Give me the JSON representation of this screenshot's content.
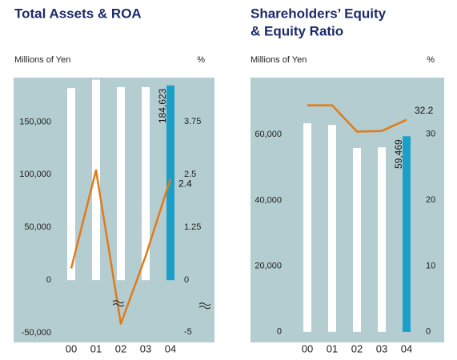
{
  "chart_data": [
    {
      "type": "bar-line",
      "title": [
        "Total Assets & ROA"
      ],
      "y_label": "Millions of Yen",
      "y2_label": "%",
      "categories": [
        "00",
        "01",
        "02",
        "03",
        "04"
      ],
      "series": [
        {
          "type": "bar",
          "values": [
            182000,
            190000,
            183000,
            183000,
            184623
          ],
          "colors": [
            "#ffffff",
            "#ffffff",
            "#ffffff",
            "#ffffff",
            "#1aa0c8"
          ],
          "value_labels": [
            null,
            null,
            null,
            null,
            "184,623"
          ]
        },
        {
          "type": "line",
          "axis": "y2",
          "color": "#e07b1a",
          "values": [
            0.28,
            2.6,
            -4.2,
            0.57,
            2.4
          ],
          "value_labels": [
            null,
            null,
            null,
            null,
            "2.4"
          ]
        }
      ],
      "ylim": [
        -59000,
        192000
      ],
      "yticks": [
        {
          "value": -50000,
          "label": "-50,000"
        },
        0,
        {
          "value": 50000,
          "label": "50,000"
        },
        {
          "value": 100000,
          "label": "100,000"
        },
        {
          "value": 150000,
          "label": "150,000"
        }
      ],
      "y2lim": [
        -6,
        4.79
      ],
      "y2ticks": [
        -5,
        0,
        1.25,
        2.5,
        3.75
      ],
      "axis_break": true,
      "background": "#b4cdd0"
    },
    {
      "type": "bar-line",
      "title": [
        "Shareholders’ Equity",
        "& Equity Ratio"
      ],
      "y_label": "Millions of Yen",
      "y2_label": "%",
      "categories": [
        "00",
        "01",
        "02",
        "03",
        "04"
      ],
      "series": [
        {
          "type": "bar",
          "values": [
            63400,
            62900,
            55900,
            56100,
            59469
          ],
          "colors": [
            "#ffffff",
            "#ffffff",
            "#ffffff",
            "#ffffff",
            "#1aa0c8"
          ],
          "value_labels": [
            null,
            null,
            null,
            null,
            "59,469"
          ]
        },
        {
          "type": "line",
          "axis": "y2",
          "color": "#e07b1a",
          "values": [
            34.4,
            34.4,
            30.4,
            30.5,
            32.2
          ],
          "value_labels": [
            null,
            null,
            null,
            null,
            "32.2"
          ]
        }
      ],
      "ylim": [
        -3200,
        77300
      ],
      "yticks": [
        0,
        {
          "value": 20000,
          "label": "20,000"
        },
        {
          "value": 40000,
          "label": "40,000"
        },
        {
          "value": 60000,
          "label": "60,000"
        }
      ],
      "y2lim": [
        -1.6,
        38.6
      ],
      "y2ticks": [
        0,
        10,
        20,
        30
      ],
      "axis_break": false,
      "background": "#b4cdd0"
    }
  ]
}
